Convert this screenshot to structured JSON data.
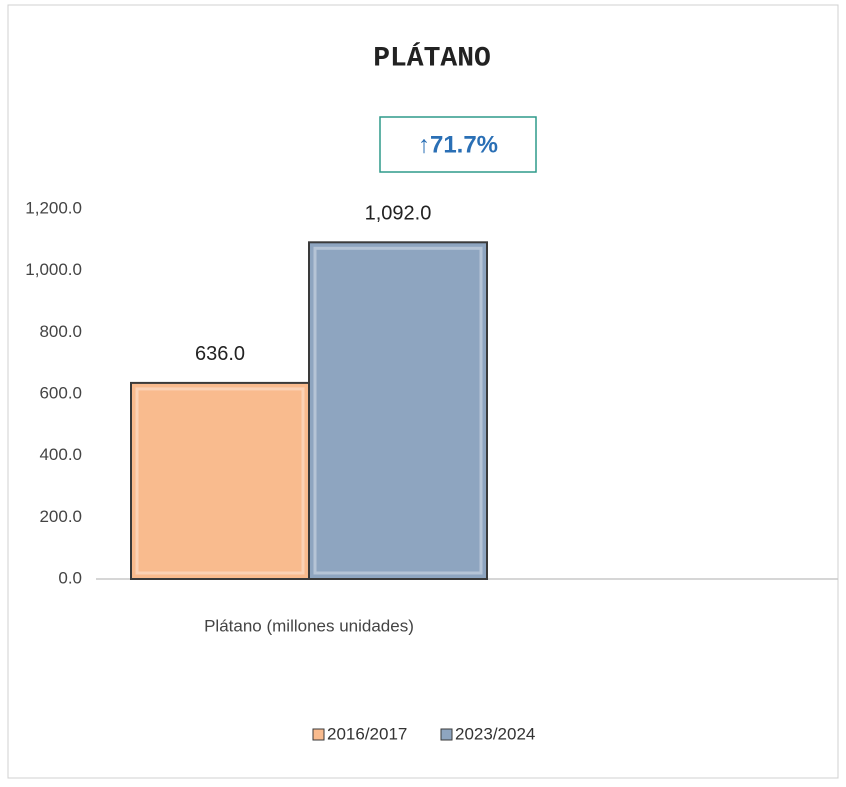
{
  "chart_data": {
    "type": "bar",
    "title": "PLÁTANO",
    "annotation": "↑71.7%",
    "categories": [
      "Plátano (millones unidades)"
    ],
    "series": [
      {
        "name": "2016/2017",
        "color": "#f9bb8e",
        "values": [
          636.0
        ],
        "value_labels": [
          "636.0"
        ]
      },
      {
        "name": "2023/2024",
        "color": "#8ea5c0",
        "values": [
          1092.0
        ],
        "value_labels": [
          "1,092.0"
        ]
      }
    ],
    "ylim": [
      0,
      1200
    ],
    "yticks": [
      {
        "value": 0,
        "label": "0.0"
      },
      {
        "value": 200,
        "label": "200.0"
      },
      {
        "value": 400,
        "label": "400.0"
      },
      {
        "value": 600,
        "label": "600.0"
      },
      {
        "value": 800,
        "label": "800.0"
      },
      {
        "value": 1000,
        "label": "1,000.0"
      },
      {
        "value": 1200,
        "label": "1,200.0"
      }
    ],
    "grid": false,
    "legend": "bottom"
  }
}
